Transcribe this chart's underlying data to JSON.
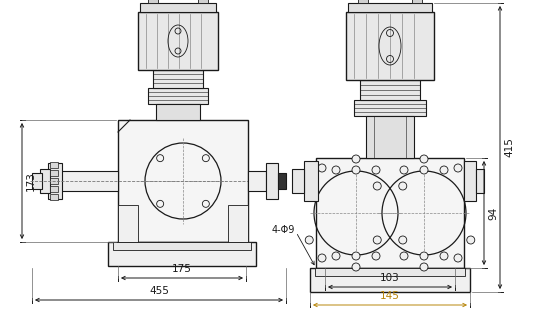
{
  "bg_color": "#ffffff",
  "lc": "#1a1a1a",
  "gold": "#b8860b",
  "fig_width": 5.52,
  "fig_height": 3.25,
  "dpi": 100,
  "dims": {
    "left_455": "455",
    "left_175": "175",
    "left_173": "173",
    "right_415": "415",
    "right_94": "94",
    "right_103": "103",
    "right_145": "145",
    "right_4phi9": "4-Φ9"
  }
}
